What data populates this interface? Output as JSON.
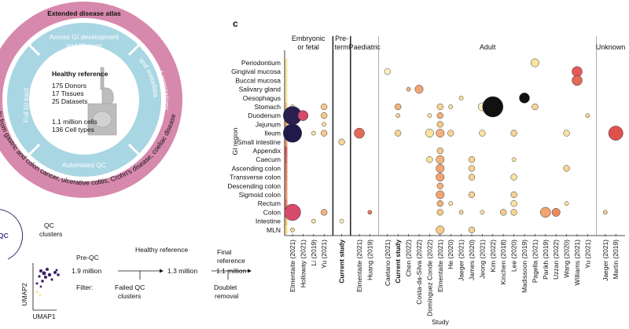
{
  "atlas": {
    "title": "Extended disease atlas",
    "disease_text": "ells from gastric and colon cancer, ulcerative colitis, Crohn's disease, coeliac disease",
    "top": [
      "Across GI development",
      "and lifespan"
    ],
    "right": [
      "Harmonized annotations",
      "and metadata"
    ],
    "bottom": "Automated QC",
    "left": "Full GI tract",
    "center_title": "Healthy reference",
    "stats_a": [
      "175 Donors",
      "17 Tissues",
      "25 Datasets"
    ],
    "stats_b": [
      "1.1 million cells",
      "136 Cell types"
    ]
  },
  "workflow": {
    "fragment": "QC",
    "umap_title": [
      "QC",
      "clusters"
    ],
    "umap_x": "UMAP1",
    "umap_y": "UMAP2",
    "pre_label": "Pre-QC",
    "pre_count": "1.9 million",
    "mid_label": "Healthy reference",
    "mid_count": "1.3 million",
    "final_label": [
      "Final",
      "reference"
    ],
    "final_count": "1.1 million",
    "filter_label": "Filter:",
    "filter_a": [
      "Failed QC",
      "clusters"
    ],
    "filter_b": [
      "Doublet",
      "removal"
    ]
  },
  "chart_data": {
    "type": "bubble",
    "panel_label": "c",
    "y_label": "GI region",
    "x_label": "Study",
    "groups": [
      {
        "lines": [
          "Embryonic",
          "or fetal"
        ],
        "first": 0,
        "last": 3
      },
      {
        "lines": [
          "Pre-",
          "term"
        ],
        "first": 4,
        "last": 4
      },
      {
        "lines": [
          "Paediatric"
        ],
        "first": 5,
        "last": 6
      },
      {
        "lines": [
          "Adult"
        ],
        "first": 7,
        "last": 26
      },
      {
        "lines": [
          "Unknown"
        ],
        "first": 27,
        "last": 28
      }
    ],
    "studies": [
      "Elmentaite (2021)",
      "Holloway (2021)",
      "Li (2019)",
      "Yu (2021)",
      "Current study",
      "Elmentaite (2021)",
      "Huang (2019)",
      "Caetano (2021)",
      "Current study",
      "Chen (2022)",
      "Costa-da-Silva (2022)",
      "Domínguez Conde (2022)",
      "Elmentaite (2021)",
      "He (2020)",
      "Jaeger (2021)",
      "James (2020)",
      "Jeong (2021)",
      "Kim (2022)",
      "Kinchen (2018)",
      "Lee (2020)",
      "Madissoon (2019)",
      "Pagella (2021)",
      "Parikh (2019)",
      "Uzzan (2022)",
      "Wang (2020)",
      "Williams (2021)",
      "Yu (2021)",
      "Jaeger (2021)",
      "Martin (2019)"
    ],
    "bold_studies": [
      4,
      8
    ],
    "regions": [
      "Periodontium",
      "Gingival mucosa",
      "Buccal mucosa",
      "Salivary gland",
      "Oesophagus",
      "Stomach",
      "Duodenum",
      "Jejunum",
      "Ileum",
      "Small intestine",
      "Appendix",
      "Caecum",
      "Ascending colon",
      "Transverse colon",
      "Descending colon",
      "Sigmoid colon",
      "Rectum",
      "Colon",
      "Intestine",
      "MLN"
    ],
    "region_colors": [
      "#f7e7a6",
      "#f7e7a6",
      "#f7e7a6",
      "#f7e7a6",
      "#f7e7a6",
      "#f3c98a",
      "#f0b07a",
      "#eea070",
      "#e98766",
      "#e9a070",
      "#d96060",
      "#d96e64",
      "#e08068",
      "#e08a6a",
      "#e59470",
      "#e69c72",
      "#e27e68",
      "#d86a62",
      "#f2c47e",
      "#f7e08c"
    ],
    "points": [
      {
        "study": 21,
        "region": 0,
        "size": 4,
        "color": "#fbe3a0"
      },
      {
        "study": 7,
        "region": 1,
        "size": 3,
        "color": "#fdf0c0"
      },
      {
        "study": 25,
        "region": 1,
        "size": 5,
        "color": "#e8585a"
      },
      {
        "study": 25,
        "region": 2,
        "size": 5,
        "color": "#e46a58"
      },
      {
        "study": 9,
        "region": 3,
        "size": 2,
        "color": "#f3b27c"
      },
      {
        "study": 10,
        "region": 3,
        "size": 4,
        "color": "#f1a672"
      },
      {
        "study": 14,
        "region": 4,
        "size": 2,
        "color": "#fbe3a0"
      },
      {
        "study": 20,
        "region": 4,
        "size": 5,
        "color": "#111111"
      },
      {
        "study": 0,
        "region": 5,
        "size": 2,
        "color": "#fbe3a0"
      },
      {
        "study": 3,
        "region": 5,
        "size": 3,
        "color": "#f5c98a"
      },
      {
        "study": 8,
        "region": 5,
        "size": 3,
        "color": "#f3b27c"
      },
      {
        "study": 12,
        "region": 5,
        "size": 3,
        "color": "#f7d494"
      },
      {
        "study": 13,
        "region": 5,
        "size": 2,
        "color": "#fbe3a0"
      },
      {
        "study": 16,
        "region": 5,
        "size": 4,
        "color": "#fdf0c0"
      },
      {
        "study": 17,
        "region": 5,
        "size": 10,
        "color": "#111111"
      },
      {
        "study": 21,
        "region": 5,
        "size": 3,
        "color": "#f7d494"
      },
      {
        "study": 0,
        "region": 6,
        "size": 9,
        "color": "#2a1f4e"
      },
      {
        "study": 1,
        "region": 6,
        "size": 5,
        "color": "#d44a6a"
      },
      {
        "study": 3,
        "region": 6,
        "size": 3,
        "color": "#f5c98a"
      },
      {
        "study": 8,
        "region": 6,
        "size": 2,
        "color": "#f7d494"
      },
      {
        "study": 11,
        "region": 6,
        "size": 2,
        "color": "#fbe3a0"
      },
      {
        "study": 12,
        "region": 6,
        "size": 3,
        "color": "#f3b27c"
      },
      {
        "study": 26,
        "region": 6,
        "size": 2,
        "color": "#f7d494"
      },
      {
        "study": 3,
        "region": 7,
        "size": 2,
        "color": "#fbe3a0"
      },
      {
        "study": 12,
        "region": 7,
        "size": 3,
        "color": "#f5c98a"
      },
      {
        "study": 0,
        "region": 8,
        "size": 9,
        "color": "#22184a"
      },
      {
        "study": 2,
        "region": 8,
        "size": 2,
        "color": "#fbe3a0"
      },
      {
        "study": 3,
        "region": 8,
        "size": 3,
        "color": "#f5c98a"
      },
      {
        "study": 5,
        "region": 8,
        "size": 5,
        "color": "#e46a58"
      },
      {
        "study": 8,
        "region": 8,
        "size": 3,
        "color": "#f7d494"
      },
      {
        "study": 11,
        "region": 8,
        "size": 4,
        "color": "#fbe3a0"
      },
      {
        "study": 12,
        "region": 8,
        "size": 4,
        "color": "#f3b27c"
      },
      {
        "study": 13,
        "region": 8,
        "size": 3,
        "color": "#f7d494"
      },
      {
        "study": 16,
        "region": 8,
        "size": 3,
        "color": "#fbe3a0"
      },
      {
        "study": 19,
        "region": 8,
        "size": 3,
        "color": "#f7d494"
      },
      {
        "study": 24,
        "region": 8,
        "size": 3,
        "color": "#fbe3a0"
      },
      {
        "study": 28,
        "region": 8,
        "size": 7,
        "color": "#e0504c"
      },
      {
        "study": 4,
        "region": 9,
        "size": 3,
        "color": "#f7d494"
      },
      {
        "study": 12,
        "region": 10,
        "size": 3,
        "color": "#f5c98a"
      },
      {
        "study": 11,
        "region": 11,
        "size": 3,
        "color": "#fbe3a0"
      },
      {
        "study": 12,
        "region": 11,
        "size": 4,
        "color": "#f3b27c"
      },
      {
        "study": 15,
        "region": 11,
        "size": 3,
        "color": "#f7d494"
      },
      {
        "study": 19,
        "region": 11,
        "size": 2,
        "color": "#fbe3a0"
      },
      {
        "study": 12,
        "region": 12,
        "size": 4,
        "color": "#f3a472"
      },
      {
        "study": 15,
        "region": 12,
        "size": 3,
        "color": "#f7d494"
      },
      {
        "study": 24,
        "region": 12,
        "size": 3,
        "color": "#f7d494"
      },
      {
        "study": 12,
        "region": 13,
        "size": 4,
        "color": "#f3a472"
      },
      {
        "study": 15,
        "region": 13,
        "size": 3,
        "color": "#f7d494"
      },
      {
        "study": 19,
        "region": 13,
        "size": 3,
        "color": "#fbe3a0"
      },
      {
        "study": 12,
        "region": 14,
        "size": 3,
        "color": "#f3b27c"
      },
      {
        "study": 12,
        "region": 15,
        "size": 4,
        "color": "#f3a472"
      },
      {
        "study": 15,
        "region": 15,
        "size": 3,
        "color": "#f7d494"
      },
      {
        "study": 19,
        "region": 15,
        "size": 3,
        "color": "#f7d494"
      },
      {
        "study": 12,
        "region": 16,
        "size": 3,
        "color": "#f3b27c"
      },
      {
        "study": 13,
        "region": 16,
        "size": 2,
        "color": "#fbe3a0"
      },
      {
        "study": 19,
        "region": 16,
        "size": 3,
        "color": "#fbe3a0"
      },
      {
        "study": 24,
        "region": 16,
        "size": 2,
        "color": "#fbe3a0"
      },
      {
        "study": 0,
        "region": 17,
        "size": 8,
        "color": "#d84a6a"
      },
      {
        "study": 3,
        "region": 17,
        "size": 3,
        "color": "#f3b27c"
      },
      {
        "study": 6,
        "region": 17,
        "size": 2,
        "color": "#e87a5a"
      },
      {
        "study": 12,
        "region": 17,
        "size": 3,
        "color": "#f5c98a"
      },
      {
        "study": 14,
        "region": 17,
        "size": 2,
        "color": "#f7d494"
      },
      {
        "study": 16,
        "region": 17,
        "size": 2,
        "color": "#fbe3a0"
      },
      {
        "study": 18,
        "region": 17,
        "size": 3,
        "color": "#f5c98a"
      },
      {
        "study": 19,
        "region": 17,
        "size": 3,
        "color": "#f7d494"
      },
      {
        "study": 22,
        "region": 17,
        "size": 5,
        "color": "#f3a472"
      },
      {
        "study": 23,
        "region": 17,
        "size": 4,
        "color": "#ee8a62"
      },
      {
        "study": 27,
        "region": 17,
        "size": 2,
        "color": "#f5c98a"
      },
      {
        "study": 2,
        "region": 18,
        "size": 2,
        "color": "#fbe3a0"
      },
      {
        "study": 4,
        "region": 18,
        "size": 2,
        "color": "#fdf0c0"
      },
      {
        "study": 0,
        "region": 19,
        "size": 2,
        "color": "#f7d494"
      },
      {
        "study": 12,
        "region": 19,
        "size": 4,
        "color": "#f5c98a"
      },
      {
        "study": 15,
        "region": 19,
        "size": 3,
        "color": "#f7d494"
      }
    ]
  }
}
